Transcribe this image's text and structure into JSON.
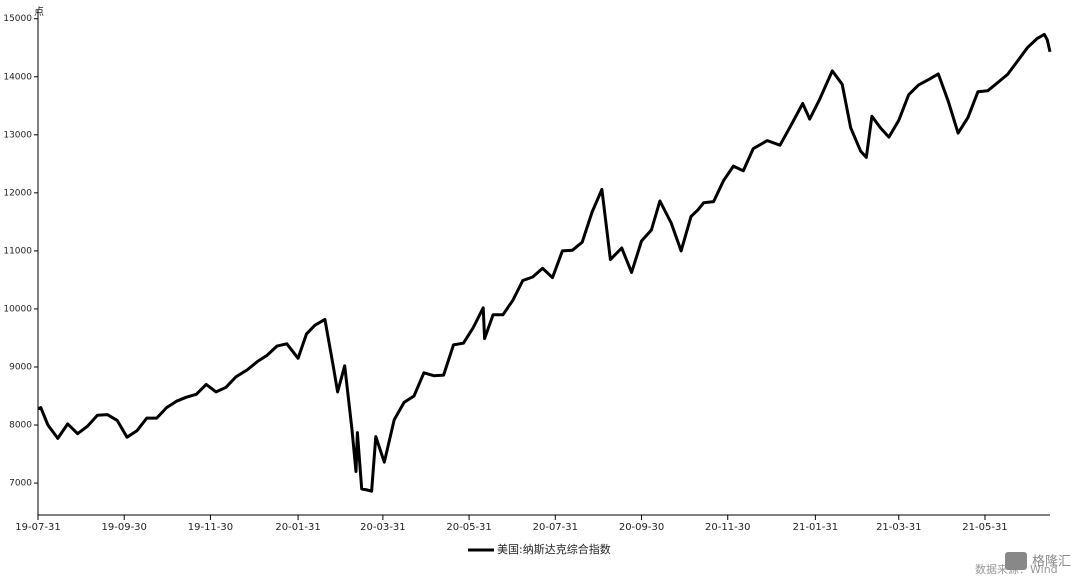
{
  "chart_data": {
    "type": "line",
    "y_unit": "点",
    "x": [
      "19-07-31",
      "19-08-02",
      "19-08-07",
      "19-08-14",
      "19-08-21",
      "19-08-28",
      "19-09-04",
      "19-09-11",
      "19-09-18",
      "19-09-25",
      "19-10-02",
      "19-10-09",
      "19-10-16",
      "19-10-23",
      "19-10-30",
      "19-11-06",
      "19-11-13",
      "19-11-20",
      "19-11-27",
      "19-12-04",
      "19-12-11",
      "19-12-18",
      "19-12-26",
      "20-01-02",
      "20-01-09",
      "20-01-16",
      "20-01-23",
      "20-01-31",
      "20-02-06",
      "20-02-12",
      "20-02-19",
      "20-02-25",
      "20-02-28",
      "20-03-04",
      "20-03-09",
      "20-03-12",
      "20-03-13",
      "20-03-16",
      "20-03-20",
      "20-03-23",
      "20-03-26",
      "20-04-01",
      "20-04-08",
      "20-04-15",
      "20-04-22",
      "20-04-29",
      "20-05-06",
      "20-05-13",
      "20-05-20",
      "20-05-27",
      "20-06-03",
      "20-06-10",
      "20-06-11",
      "20-06-17",
      "20-06-24",
      "20-07-01",
      "20-07-08",
      "20-07-15",
      "20-07-22",
      "20-07-29",
      "20-08-05",
      "20-08-12",
      "20-08-19",
      "20-08-26",
      "20-09-02",
      "20-09-08",
      "20-09-16",
      "20-09-23",
      "20-09-30",
      "20-10-07",
      "20-10-13",
      "20-10-21",
      "20-10-28",
      "20-11-04",
      "20-11-09",
      "20-11-13",
      "20-11-20",
      "20-11-27",
      "20-12-04",
      "20-12-11",
      "20-12-18",
      "20-12-28",
      "21-01-06",
      "21-01-13",
      "21-01-22",
      "21-01-27",
      "21-02-03",
      "21-02-12",
      "21-02-19",
      "21-02-25",
      "21-03-04",
      "21-03-08",
      "21-03-12",
      "21-03-18",
      "21-03-24",
      "21-03-31",
      "21-04-07",
      "21-04-14",
      "21-04-21",
      "21-04-28",
      "21-05-05",
      "21-05-12",
      "21-05-19",
      "21-05-26",
      "21-06-02",
      "21-06-09",
      "21-06-16",
      "21-06-23",
      "21-06-30",
      "21-07-07",
      "21-07-12",
      "21-07-14",
      "21-07-16"
    ],
    "series": [
      {
        "name": "美国:纳斯达克综合指数",
        "color": "#000000",
        "values": [
          8280,
          8300,
          8000,
          7770,
          8020,
          7850,
          7980,
          8170,
          8180,
          8080,
          7790,
          7900,
          8120,
          8120,
          8300,
          8410,
          8480,
          8530,
          8700,
          8570,
          8650,
          8830,
          8950,
          9090,
          9200,
          9360,
          9400,
          9150,
          9570,
          9720,
          9820,
          9000,
          8570,
          9020,
          7950,
          7200,
          7870,
          6900,
          6880,
          6860,
          7800,
          7360,
          8090,
          8390,
          8500,
          8900,
          8850,
          8860,
          9380,
          9410,
          9680,
          10020,
          9490,
          9900,
          9900,
          10150,
          10490,
          10550,
          10700,
          10540,
          11000,
          11010,
          11150,
          11670,
          12060,
          10850,
          11050,
          10630,
          11170,
          11360,
          11860,
          11480,
          11000,
          11590,
          11710,
          11830,
          11850,
          12210,
          12460,
          12380,
          12760,
          12900,
          12820,
          13130,
          13540,
          13270,
          13610,
          14100,
          13870,
          13120,
          12720,
          12610,
          13320,
          13120,
          12960,
          13250,
          13690,
          13860,
          13950,
          14050,
          13580,
          13030,
          13300,
          13740,
          13760,
          13900,
          14040,
          14270,
          14500,
          14660,
          14730,
          14640,
          14430
        ]
      }
    ],
    "xlim": [
      "19-07-31",
      "21-07-16"
    ],
    "xticks": [
      "19-07-31",
      "19-09-30",
      "19-11-30",
      "20-01-31",
      "20-03-31",
      "20-05-31",
      "20-07-31",
      "20-09-30",
      "20-11-30",
      "21-01-31",
      "21-03-31",
      "21-05-31"
    ],
    "ylim": [
      6450,
      15150
    ],
    "yticks": [
      7000,
      8000,
      9000,
      10000,
      11000,
      12000,
      13000,
      14000,
      15000
    ],
    "legend": "bottom",
    "source": "数据来源：Wind",
    "watermark": "格隆汇"
  }
}
